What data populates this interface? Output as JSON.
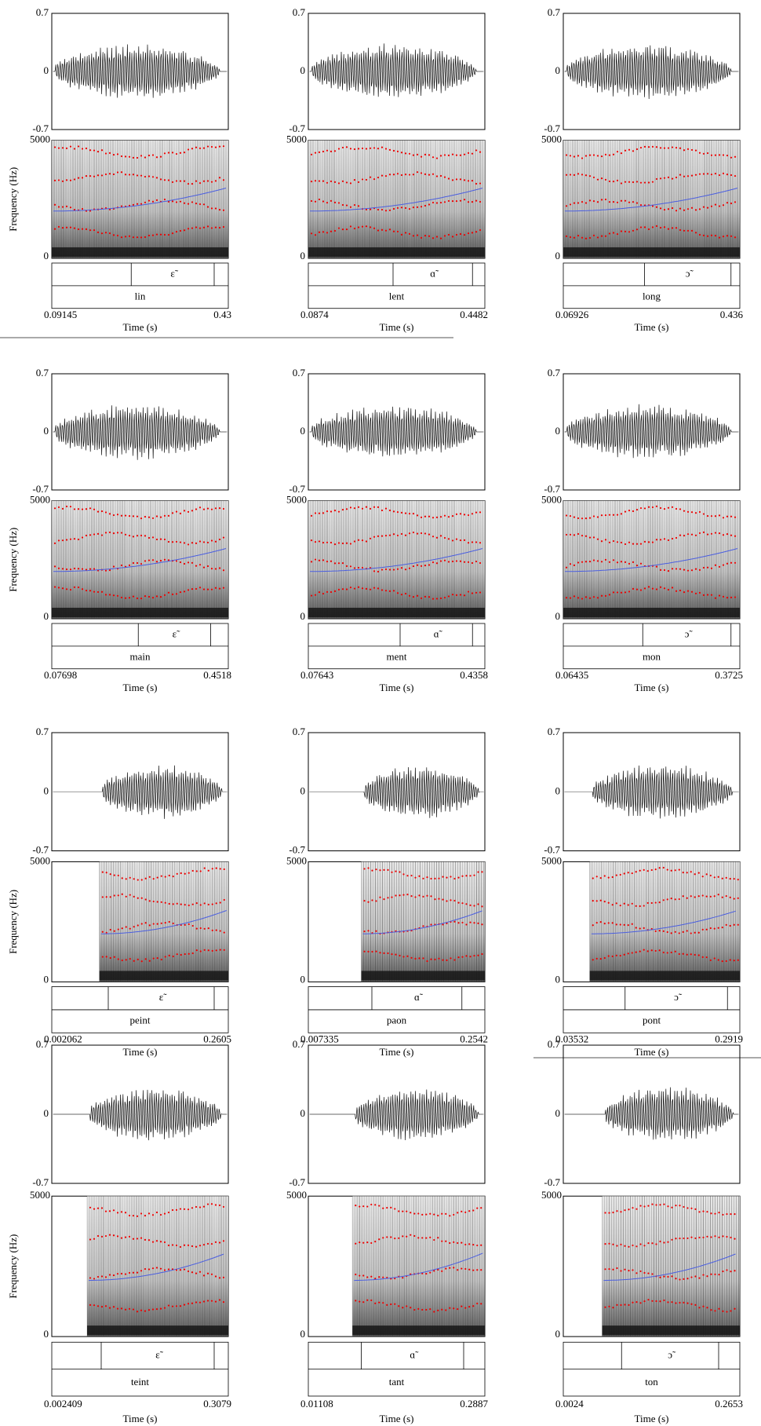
{
  "axes": {
    "wave_ticks": [
      0.7,
      0,
      -0.7
    ],
    "freq_ticks": [
      5000,
      0
    ],
    "y_label": "Frequency (Hz)",
    "x_label": "Time (s)"
  },
  "panels": [
    {
      "vowel": "ɛ̃",
      "word": "lin",
      "t_start": 0.09145,
      "t_end": 0.43
    },
    {
      "vowel": "ɑ̃",
      "word": "lent",
      "t_start": 0.0874,
      "t_end": 0.4482
    },
    {
      "vowel": "ɔ̃",
      "word": "long",
      "t_start": 0.06926,
      "t_end": 0.436
    },
    {
      "vowel": "ɛ̃",
      "word": "main",
      "t_start": 0.07698,
      "t_end": 0.4518
    },
    {
      "vowel": "ɑ̃",
      "word": "ment",
      "t_start": 0.07643,
      "t_end": 0.4358
    },
    {
      "vowel": "ɔ̃",
      "word": "mon",
      "t_start": 0.06435,
      "t_end": 0.3725
    },
    {
      "vowel": "ɛ̃",
      "word": "peint",
      "t_start": 0.002062,
      "t_end": 0.2605
    },
    {
      "vowel": "ɑ̃",
      "word": "paon",
      "t_start": 0.007335,
      "t_end": 0.2542
    },
    {
      "vowel": "ɔ̃",
      "word": "pont",
      "t_start": 0.03532,
      "t_end": 0.2919
    },
    {
      "vowel": "ɛ̃",
      "word": "teint",
      "t_start": 0.002409,
      "t_end": 0.3079
    },
    {
      "vowel": "ɑ̃",
      "word": "tant",
      "t_start": 0.01108,
      "t_end": 0.2887
    },
    {
      "vowel": "ɔ̃",
      "word": "ton",
      "t_start": 0.0024,
      "t_end": 0.2653
    }
  ]
}
